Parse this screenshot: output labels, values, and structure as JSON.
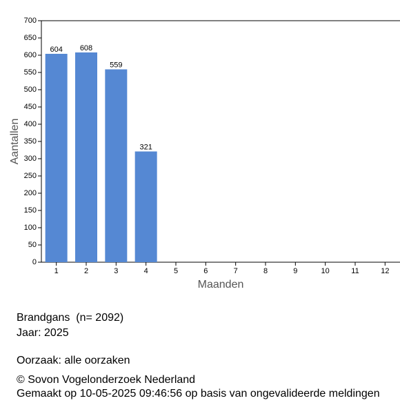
{
  "chart_data": {
    "type": "bar",
    "x_label": "Maanden",
    "y_label": "Aantallen",
    "categories": [
      "1",
      "2",
      "3",
      "4",
      "5",
      "6",
      "7",
      "8",
      "9",
      "10",
      "11",
      "12"
    ],
    "values": [
      604,
      608,
      559,
      321,
      null,
      null,
      null,
      null,
      null,
      null,
      null,
      null
    ],
    "color": "#5588d3",
    "ylim": [
      0,
      700
    ],
    "yticks": [
      0,
      50,
      100,
      150,
      200,
      250,
      300,
      350,
      400,
      450,
      500,
      550,
      600,
      650,
      700
    ]
  },
  "footer": {
    "species": "Brandgans  (n= 2092)",
    "year": "Jaar: 2025",
    "cause": "Oorzaak: alle oorzaken",
    "copyright": "© Sovon Vogelonderzoek Nederland",
    "made": "Gemaakt op 10-05-2025 09:46:56 op basis van ongevalideerde meldingen"
  }
}
